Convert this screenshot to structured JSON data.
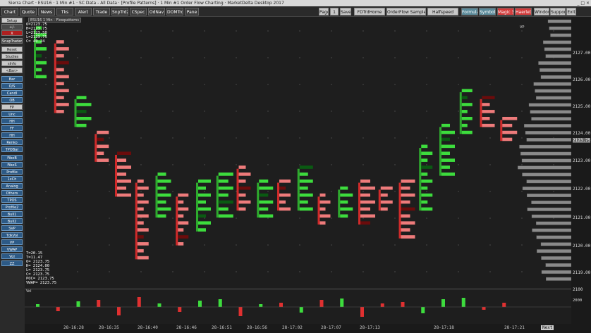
{
  "window": {
    "title": "Sierra Chart · ESU16 · 1 Min #1 · SC Data - All Data · [Profile Patterns] · 1 Min #1 Order Flow Charting · MarketDelta Desktop 2017",
    "controls": "_ □ ×"
  },
  "toolbar": {
    "left": [
      "Chart",
      "Quote",
      "News",
      "Tks",
      "Alert",
      "Trade",
      "SnpTrd2",
      "CSpec",
      "OdNav",
      "DOMTrd",
      "Pane"
    ],
    "right": [
      "Page",
      "1",
      "Save",
      "FDTrdHome",
      "OrderFlow Samples",
      "Halfspeed",
      "Formula",
      "Symbols",
      "Magic 3",
      "Haerlet",
      "Window",
      "Support",
      "Exit"
    ]
  },
  "sidebar": {
    "items": [
      "Setup",
      "+/-",
      "X",
      "SnapTrader",
      "Reset",
      "Studies",
      "sInfo",
      "<Bar>",
      "Bar",
      "O/S",
      "Candl",
      "OB",
      "FP",
      "Unc",
      "HH",
      "FF",
      "HH",
      "Renko",
      "TPOBar",
      "FiboB",
      "FiboS",
      "Profile",
      "1xCh",
      "Analog",
      "Others",
      "TPOS",
      "Profile2",
      "Bull1",
      "Bull2",
      "SVP",
      "TdkVol",
      "VP",
      "VWAP",
      "Vol",
      "ZZ"
    ]
  },
  "chart_tab": "ESU16 1 Min - Flowpatterns",
  "info_top": [
    "O=2123.75",
    "H=2123.75",
    "L=2123.50",
    "L=2123.75",
    "C= 40.24"
  ],
  "info_bottom": [
    "T=20.15",
    "T=11.47",
    "O= 2123.75",
    "H= 2124.00",
    "L= 2123.75",
    "C= 2123.75",
    "POC= 2123.75",
    "VWAP= 2123.75"
  ],
  "vp_label": "VP",
  "vol_label": "Vol",
  "vol_tick": "2000",
  "axis": {
    "labels": [
      "2127.00",
      "2126.00",
      "2125.00",
      "2124.00",
      "2123.75",
      "2123.00",
      "2122.00",
      "2121.00",
      "2120.00",
      "2119.00",
      "2100"
    ]
  },
  "time_labels": [
    "28-16:28",
    "28-16:35",
    "28-16:40",
    "28-16:46",
    "28-16:51",
    "28-16:56",
    "28-17:02",
    "28-17:07",
    "28-17:13",
    "28-17:18",
    "28-17:21",
    "Next"
  ],
  "colors": {
    "bg": "#1e1e1e",
    "up": "#3ddc3d",
    "down": "#ee7b7b",
    "strong_up": "#0a5a12",
    "strong_down": "#6a0c0c",
    "grid_dot": "#555555",
    "profile": "#8a8a8a"
  },
  "chart_data": {
    "type": "bar",
    "title": "",
    "ylabel": "",
    "ylim": [
      2118.25,
      2127.5
    ],
    "bars": [
      {
        "low": 2125.5,
        "high": 2127.25,
        "dir": "up"
      },
      {
        "low": 2124.25,
        "high": 2126.75,
        "dir": "down"
      },
      {
        "low": 2123.75,
        "high": 2124.75,
        "dir": "up"
      },
      {
        "low": 2122.5,
        "high": 2123.5,
        "dir": "down"
      },
      {
        "low": 2121.25,
        "high": 2122.75,
        "dir": "down"
      },
      {
        "low": 2119.0,
        "high": 2121.75,
        "dir": "down"
      },
      {
        "low": 2120.5,
        "high": 2122.0,
        "dir": "up"
      },
      {
        "low": 2119.5,
        "high": 2121.25,
        "dir": "down"
      },
      {
        "low": 2120.0,
        "high": 2121.75,
        "dir": "up"
      },
      {
        "low": 2120.5,
        "high": 2122.0,
        "dir": "up"
      },
      {
        "low": 2120.75,
        "high": 2122.25,
        "dir": "down"
      },
      {
        "low": 2120.5,
        "high": 2121.75,
        "dir": "up"
      },
      {
        "low": 2120.75,
        "high": 2121.75,
        "dir": "down"
      },
      {
        "low": 2120.75,
        "high": 2122.25,
        "dir": "up"
      },
      {
        "low": 2120.25,
        "high": 2121.25,
        "dir": "down"
      },
      {
        "low": 2120.5,
        "high": 2121.5,
        "dir": "up"
      },
      {
        "low": 2120.25,
        "high": 2121.75,
        "dir": "down"
      },
      {
        "low": 2120.75,
        "high": 2121.5,
        "dir": "down"
      },
      {
        "low": 2119.75,
        "high": 2121.75,
        "dir": "down"
      },
      {
        "low": 2120.75,
        "high": 2123.0,
        "dir": "up"
      },
      {
        "low": 2122.0,
        "high": 2123.75,
        "dir": "up"
      },
      {
        "low": 2123.5,
        "high": 2125.0,
        "dir": "up"
      },
      {
        "low": 2123.75,
        "high": 2124.75,
        "dir": "down"
      },
      {
        "low": 2123.25,
        "high": 2124.0,
        "dir": "down"
      }
    ]
  }
}
